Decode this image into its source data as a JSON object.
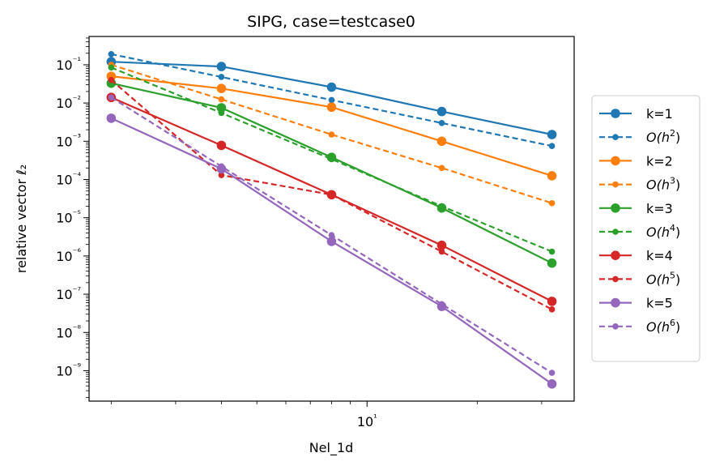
{
  "chart_data": {
    "type": "line",
    "title": "SIPG, case=testcase0",
    "xlabel": "Nel_1d",
    "ylabel": "relative vector ℓ₂",
    "xscale": "log",
    "yscale": "log",
    "xlim": [
      1.74,
      36.8
    ],
    "ylim": [
      1.6e-10,
      0.55
    ],
    "grid": false,
    "legend_position": "right, outside plot",
    "x": [
      2,
      4,
      8,
      16,
      32
    ],
    "x_ticks": [
      10
    ],
    "x_tick_labels": [
      "10¹"
    ],
    "y_ticks": [
      1e-09,
      1e-08,
      1e-07,
      1e-06,
      1e-05,
      0.0001,
      0.001,
      0.01,
      0.1
    ],
    "y_tick_labels": [
      "10⁻⁹",
      "10⁻⁸",
      "10⁻⁷",
      "10⁻⁶",
      "10⁻⁵",
      "10⁻⁴",
      "10⁻³",
      "10⁻²",
      "10⁻¹"
    ],
    "series": [
      {
        "name": "k=1",
        "style": "solid",
        "color": "#1f77b4",
        "values": [
          0.12,
          0.09,
          0.026,
          0.006,
          0.0015
        ]
      },
      {
        "name": "O(h²)",
        "name_base": "O(h",
        "name_sup": "2",
        "name_end": ")",
        "style": "dashed",
        "color": "#1f77b4",
        "values": [
          0.19,
          0.048,
          0.012,
          0.003,
          0.00075
        ]
      },
      {
        "name": "k=2",
        "style": "solid",
        "color": "#ff7f0e",
        "values": [
          0.05,
          0.024,
          0.0078,
          0.001,
          0.000125
        ]
      },
      {
        "name": "O(h³)",
        "name_base": "O(h",
        "name_sup": "3",
        "name_end": ")",
        "style": "dashed",
        "color": "#ff7f0e",
        "values": [
          0.1,
          0.0125,
          0.0015,
          0.0002,
          2.4e-05
        ]
      },
      {
        "name": "k=3",
        "style": "solid",
        "color": "#2ca02c",
        "values": [
          0.033,
          0.0075,
          0.00038,
          1.8e-05,
          6.5e-07
        ]
      },
      {
        "name": "O(h⁴)",
        "name_base": "O(h",
        "name_sup": "4",
        "name_end": ")",
        "style": "dashed",
        "color": "#2ca02c",
        "values": [
          0.085,
          0.0055,
          0.00034,
          2e-05,
          1.3e-06
        ]
      },
      {
        "name": "k=4",
        "style": "solid",
        "color": "#d62728",
        "values": [
          0.014,
          0.00078,
          4e-05,
          1.9e-06,
          6.5e-08
        ]
      },
      {
        "name": "O(h⁵)",
        "name_base": "O(h",
        "name_sup": "5",
        "name_end": ")",
        "style": "dashed",
        "color": "#d62728",
        "values": [
          0.04,
          0.00013,
          4e-05,
          1.3e-06,
          4e-08
        ]
      },
      {
        "name": "k=5",
        "style": "solid",
        "color": "#9467bd",
        "values": [
          0.004,
          0.00019,
          2.4e-06,
          4.8e-08,
          4.5e-10
        ]
      },
      {
        "name": "O(h⁶)",
        "name_base": "O(h",
        "name_sup": "6",
        "name_end": ")",
        "style": "dashed",
        "color": "#9467bd",
        "values": [
          0.014,
          0.00022,
          3.5e-06,
          5.5e-08,
          8.8e-10
        ]
      }
    ]
  }
}
